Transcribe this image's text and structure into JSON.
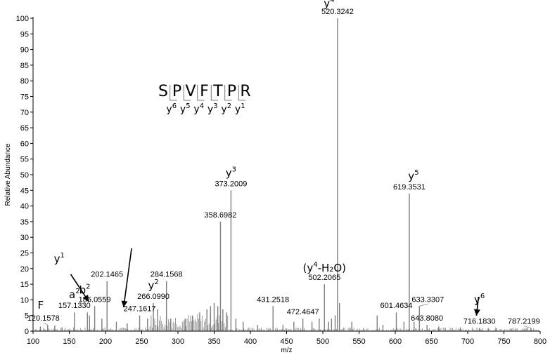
{
  "chart_data": {
    "type": "bar",
    "xlabel": "m/z",
    "ylabel": "Relative Abundance",
    "xlim": [
      100,
      800
    ],
    "ylim": [
      0,
      100
    ],
    "x_ticks": [
      100,
      150,
      200,
      250,
      300,
      350,
      400,
      450,
      500,
      550,
      600,
      650,
      700,
      750,
      800
    ],
    "y_ticks": [
      0,
      5,
      10,
      15,
      20,
      25,
      30,
      35,
      40,
      45,
      50,
      55,
      60,
      65,
      70,
      75,
      80,
      85,
      90,
      95,
      100
    ],
    "peaks": [
      {
        "mz": 120.1578,
        "intensity": 2,
        "label": "120.1578"
      },
      {
        "mz": 157.133,
        "intensity": 6,
        "label": "157.1330"
      },
      {
        "mz": 185.0559,
        "intensity": 8,
        "label": "185.0559"
      },
      {
        "mz": 202.1465,
        "intensity": 16,
        "label": "202.1465"
      },
      {
        "mz": 247.1617,
        "intensity": 5,
        "label": "247.1617"
      },
      {
        "mz": 266.099,
        "intensity": 9,
        "label": "266.0990"
      },
      {
        "mz": 284.1568,
        "intensity": 16,
        "label": "284.1568"
      },
      {
        "mz": 358.6982,
        "intensity": 35,
        "label": "358.6982"
      },
      {
        "mz": 373.2009,
        "intensity": 45,
        "label": "373.2009"
      },
      {
        "mz": 431.2518,
        "intensity": 8,
        "label": "431.2518"
      },
      {
        "mz": 472.4647,
        "intensity": 4,
        "label": "472.4647"
      },
      {
        "mz": 502.2065,
        "intensity": 15,
        "label": "502.2065"
      },
      {
        "mz": 520.3242,
        "intensity": 100,
        "label": "520.3242"
      },
      {
        "mz": 601.4634,
        "intensity": 6,
        "label": "601.4634"
      },
      {
        "mz": 619.3531,
        "intensity": 44,
        "label": "619.3531"
      },
      {
        "mz": 633.3307,
        "intensity": 8,
        "label": "633.3307"
      },
      {
        "mz": 643.808,
        "intensity": 2,
        "label": "643.8080"
      },
      {
        "mz": 716.183,
        "intensity": 1,
        "label": "716.1830"
      },
      {
        "mz": 787.2199,
        "intensity": 1,
        "label": "787.2199"
      }
    ],
    "minor_peaks": [
      {
        "mz": 110,
        "intensity": 1.5
      },
      {
        "mz": 130,
        "intensity": 1.8
      },
      {
        "mz": 140,
        "intensity": 1.2
      },
      {
        "mz": 175,
        "intensity": 6
      },
      {
        "mz": 178,
        "intensity": 5
      },
      {
        "mz": 195,
        "intensity": 4
      },
      {
        "mz": 215,
        "intensity": 3
      },
      {
        "mz": 230,
        "intensity": 2.5
      },
      {
        "mz": 258,
        "intensity": 4
      },
      {
        "mz": 272,
        "intensity": 7
      },
      {
        "mz": 290,
        "intensity": 4
      },
      {
        "mz": 310,
        "intensity": 4
      },
      {
        "mz": 320,
        "intensity": 5
      },
      {
        "mz": 330,
        "intensity": 6
      },
      {
        "mz": 340,
        "intensity": 7
      },
      {
        "mz": 345,
        "intensity": 8
      },
      {
        "mz": 350,
        "intensity": 9
      },
      {
        "mz": 355,
        "intensity": 8
      },
      {
        "mz": 362,
        "intensity": 7
      },
      {
        "mz": 367,
        "intensity": 6
      },
      {
        "mz": 380,
        "intensity": 4
      },
      {
        "mz": 390,
        "intensity": 3
      },
      {
        "mz": 410,
        "intensity": 2
      },
      {
        "mz": 445,
        "intensity": 2
      },
      {
        "mz": 460,
        "intensity": 3
      },
      {
        "mz": 485,
        "intensity": 3
      },
      {
        "mz": 495,
        "intensity": 4
      },
      {
        "mz": 508,
        "intensity": 3
      },
      {
        "mz": 512,
        "intensity": 4
      },
      {
        "mz": 517,
        "intensity": 5
      },
      {
        "mz": 523,
        "intensity": 9
      },
      {
        "mz": 540,
        "intensity": 3
      },
      {
        "mz": 575,
        "intensity": 5
      },
      {
        "mz": 583,
        "intensity": 2
      },
      {
        "mz": 612,
        "intensity": 3
      },
      {
        "mz": 626,
        "intensity": 3
      },
      {
        "mz": 660,
        "intensity": 1.5
      },
      {
        "mz": 690,
        "intensity": 1.2
      },
      {
        "mz": 740,
        "intensity": 1
      }
    ],
    "ion_annotations": [
      {
        "text": "y",
        "sup": "4",
        "mz": 520.3242
      },
      {
        "text": "y",
        "sup": "3",
        "mz": 373.2009
      },
      {
        "text": "y",
        "sup": "5",
        "mz": 619.3531
      },
      {
        "text": "(y",
        "sup": "4",
        "tail": "-H₂O)",
        "mz": 502.2065
      },
      {
        "text": "y",
        "sup": "2",
        "mz": 266.099
      },
      {
        "text": "y",
        "sup": "1",
        "mz": 175
      },
      {
        "text": "y",
        "sup": "6",
        "mz": 716.183
      },
      {
        "text": "a",
        "sup": "2",
        "mz": 157.133
      },
      {
        "text": "b",
        "sup": "2",
        "mz": 185.0559
      },
      {
        "text": "F",
        "sup": "",
        "mz": 120.1578
      }
    ],
    "sequence": {
      "letters": [
        "S",
        "P",
        "V",
        "F",
        "T",
        "P",
        "R"
      ],
      "ions": [
        {
          "text": "y",
          "sup": "6"
        },
        {
          "text": "y",
          "sup": "5"
        },
        {
          "text": "y",
          "sup": "4"
        },
        {
          "text": "y",
          "sup": "3"
        },
        {
          "text": "y",
          "sup": "2"
        },
        {
          "text": "y",
          "sup": "1"
        }
      ]
    }
  }
}
